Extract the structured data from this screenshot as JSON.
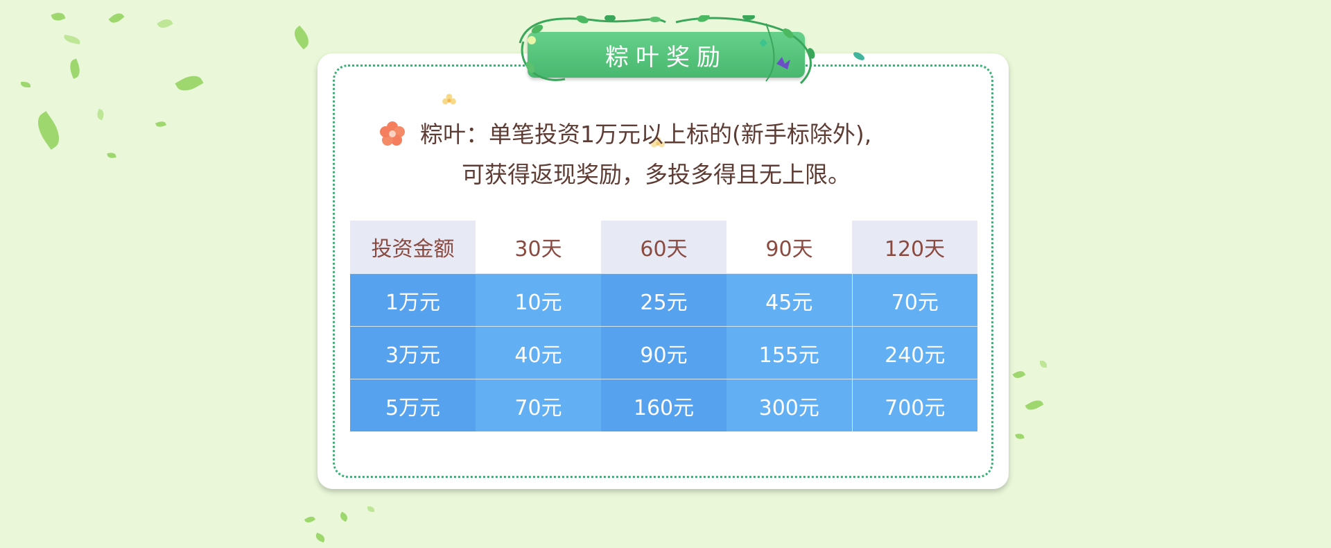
{
  "title": "粽叶奖励",
  "description": {
    "line1": "粽叶：单笔投资1万元以上标的(新手标除外),",
    "line2": "可获得返现奖励，多投多得且无上限。"
  },
  "table": {
    "headers": [
      "投资金额",
      "30天",
      "60天",
      "90天",
      "120天"
    ],
    "rows": [
      [
        "1万元",
        "10元",
        "25元",
        "45元",
        "70元"
      ],
      [
        "3万元",
        "40元",
        "90元",
        "155元",
        "240元"
      ],
      [
        "5万元",
        "70元",
        "160元",
        "300元",
        "700元"
      ]
    ]
  },
  "colors": {
    "background": "#eaf8d9",
    "banner": "#5cc77f",
    "border_dots": "#34b374",
    "header_shade": "#e7e9f5",
    "cell_blue": "#5aa8f0",
    "text_brown": "#5e3c34"
  },
  "icons": [
    "flower-icon",
    "leaf-icon",
    "vine-decoration",
    "butterfly-icon"
  ]
}
